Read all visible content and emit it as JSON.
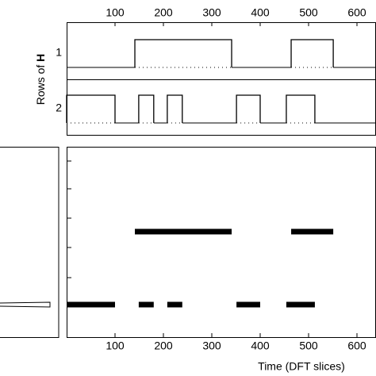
{
  "chart_data": {
    "type": "step",
    "ylabel": [
      "Rows of",
      "H"
    ],
    "xlabel": "Time (DFT slices)",
    "xlim": [
      0,
      640
    ],
    "xticks": [
      100,
      200,
      300,
      400,
      500,
      600
    ],
    "color": "#000000",
    "series": [
      {
        "name": "1",
        "segments": [
          [
            141,
            341
          ],
          [
            464,
            551
          ]
        ]
      },
      {
        "name": "2",
        "segments": [
          [
            0,
            100
          ],
          [
            149,
            180
          ],
          [
            208,
            239
          ],
          [
            351,
            400
          ],
          [
            454,
            513
          ]
        ]
      }
    ]
  }
}
